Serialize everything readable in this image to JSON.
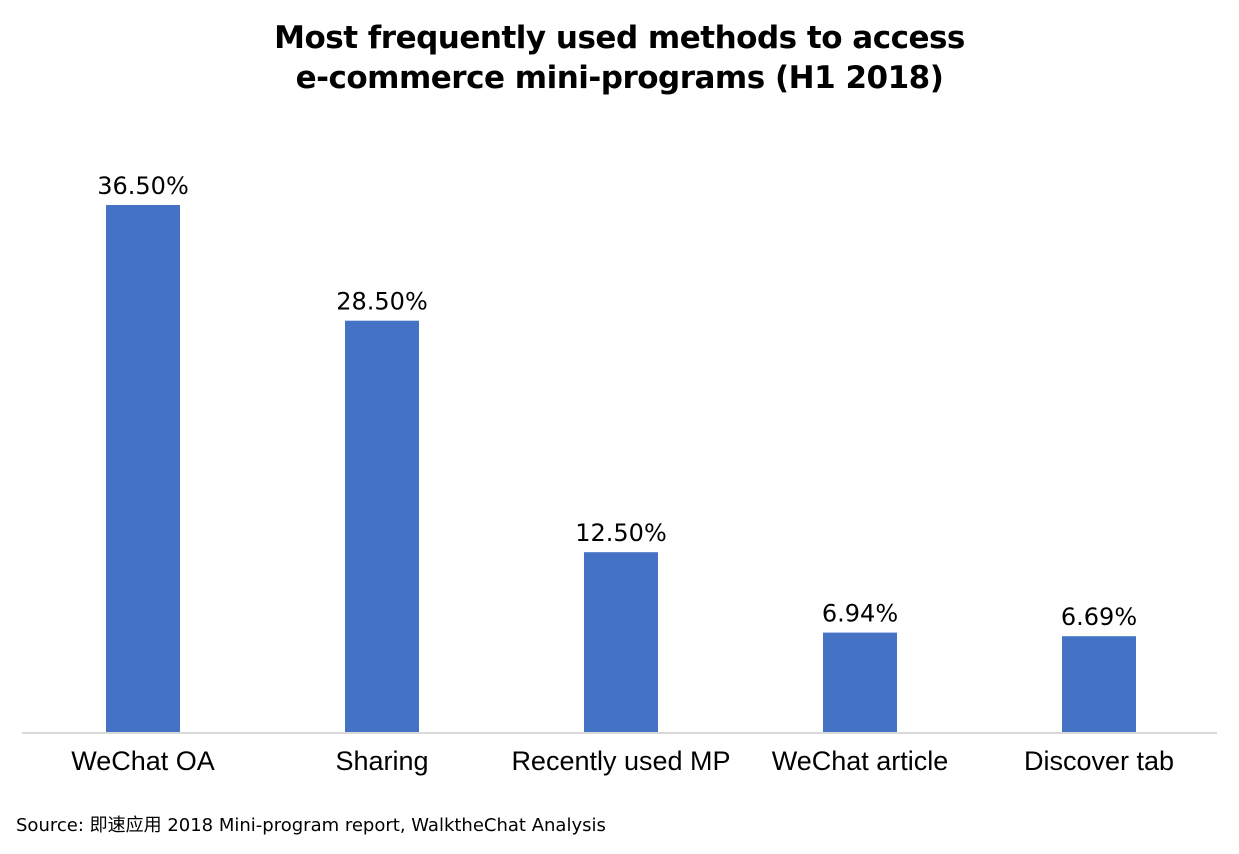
{
  "chart_data": {
    "type": "bar",
    "title": "Most frequently used methods to access e-commerce mini-programs (H1 2018)",
    "title_lines": [
      "Most frequently used methods to access",
      "e-commerce mini-programs (H1 2018)"
    ],
    "categories": [
      "WeChat OA",
      "Sharing",
      "Recently used MP",
      "WeChat article",
      "Discover tab"
    ],
    "values": [
      36.5,
      28.5,
      12.5,
      6.94,
      6.69
    ],
    "data_labels": [
      "36.50%",
      "28.50%",
      "12.50%",
      "6.94%",
      "6.69%"
    ],
    "unit": "%",
    "xlabel": "",
    "ylabel": "",
    "ylim": [
      0,
      36.5
    ],
    "grid": false,
    "legend": "none",
    "bar_color": "#4472C4",
    "axis_color": "#D9D9D9"
  },
  "source": "Source: 即速应用 2018 Mini-program report, WalktheChat Analysis"
}
